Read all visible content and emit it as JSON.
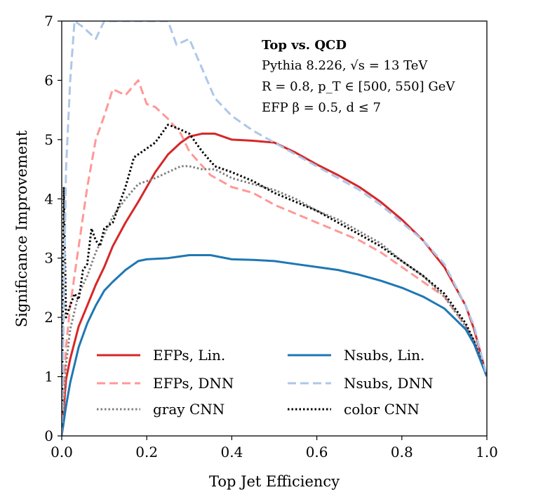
{
  "chart_data": {
    "type": "line",
    "xlabel": "Top Jet Efficiency",
    "ylabel": "Significance Improvement",
    "xlim": [
      0.0,
      1.0
    ],
    "ylim": [
      0,
      7
    ],
    "xticks": [
      "0.0",
      "0.2",
      "0.4",
      "0.6",
      "0.8",
      "1.0"
    ],
    "yticks": [
      "0",
      "1",
      "2",
      "3",
      "4",
      "5",
      "6",
      "7"
    ],
    "annotations": {
      "title": "Top vs. QCD",
      "line1": "Pythia 8.226, √s = 13 TeV",
      "line2": "R = 0.8, p_T ∈ [500, 550] GeV",
      "line3": "EFP β = 0.5, d ≤ 7"
    },
    "legend_position": "lower-left",
    "series": [
      {
        "name": "EFPs, Lin.",
        "color": "#d62728",
        "style": "solid",
        "x": [
          0.0,
          0.01,
          0.02,
          0.04,
          0.06,
          0.08,
          0.1,
          0.12,
          0.15,
          0.18,
          0.2,
          0.22,
          0.25,
          0.28,
          0.3,
          0.33,
          0.36,
          0.4,
          0.45,
          0.5,
          0.55,
          0.6,
          0.65,
          0.7,
          0.75,
          0.8,
          0.85,
          0.9,
          0.95,
          0.97,
          1.0
        ],
        "y": [
          0.0,
          0.95,
          1.3,
          1.85,
          2.2,
          2.55,
          2.85,
          3.2,
          3.6,
          3.95,
          4.2,
          4.45,
          4.75,
          4.95,
          5.05,
          5.1,
          5.1,
          5.0,
          4.98,
          4.95,
          4.78,
          4.58,
          4.4,
          4.2,
          3.95,
          3.65,
          3.3,
          2.85,
          2.2,
          1.8,
          1.0
        ]
      },
      {
        "name": "EFPs, DNN",
        "color": "#ff9896",
        "style": "dashed",
        "x": [
          0.0,
          0.01,
          0.02,
          0.04,
          0.06,
          0.08,
          0.1,
          0.12,
          0.15,
          0.18,
          0.2,
          0.22,
          0.25,
          0.28,
          0.3,
          0.35,
          0.4,
          0.45,
          0.5,
          0.55,
          0.6,
          0.65,
          0.7,
          0.75,
          0.8,
          0.85,
          0.9,
          0.95,
          0.97,
          1.0
        ],
        "y": [
          0.0,
          1.5,
          2.2,
          3.2,
          4.2,
          5.0,
          5.4,
          5.85,
          5.75,
          6.0,
          5.6,
          5.55,
          5.35,
          5.1,
          4.8,
          4.4,
          4.2,
          4.1,
          3.9,
          3.75,
          3.6,
          3.45,
          3.3,
          3.1,
          2.85,
          2.6,
          2.35,
          1.85,
          1.55,
          1.0
        ]
      },
      {
        "name": "gray CNN",
        "color": "#7f7f7f",
        "style": "dotted",
        "x": [
          0.0,
          0.01,
          0.02,
          0.04,
          0.06,
          0.08,
          0.1,
          0.12,
          0.15,
          0.18,
          0.2,
          0.22,
          0.25,
          0.28,
          0.3,
          0.33,
          0.36,
          0.4,
          0.45,
          0.5,
          0.55,
          0.6,
          0.65,
          0.7,
          0.75,
          0.8,
          0.85,
          0.9,
          0.95,
          0.97,
          1.0
        ],
        "y": [
          0.0,
          1.2,
          1.8,
          2.4,
          2.7,
          3.1,
          3.4,
          3.7,
          4.0,
          4.25,
          4.3,
          4.35,
          4.45,
          4.55,
          4.55,
          4.5,
          4.5,
          4.35,
          4.25,
          4.15,
          4.0,
          3.8,
          3.65,
          3.45,
          3.25,
          2.95,
          2.7,
          2.35,
          1.85,
          1.6,
          1.0
        ]
      },
      {
        "name": "color CNN",
        "color": "#000000",
        "style": "dotted",
        "x": [
          0.0,
          0.005,
          0.01,
          0.02,
          0.03,
          0.04,
          0.05,
          0.06,
          0.07,
          0.08,
          0.09,
          0.1,
          0.12,
          0.15,
          0.17,
          0.2,
          0.22,
          0.25,
          0.27,
          0.3,
          0.33,
          0.36,
          0.4,
          0.45,
          0.5,
          0.55,
          0.6,
          0.65,
          0.7,
          0.75,
          0.8,
          0.85,
          0.9,
          0.95,
          0.97,
          1.0
        ],
        "y": [
          0.0,
          4.2,
          2.0,
          2.2,
          2.4,
          2.3,
          2.8,
          2.9,
          3.5,
          3.3,
          3.2,
          3.5,
          3.6,
          4.2,
          4.7,
          4.85,
          4.95,
          5.25,
          5.2,
          5.1,
          4.8,
          4.55,
          4.45,
          4.3,
          4.1,
          3.95,
          3.8,
          3.6,
          3.4,
          3.2,
          2.95,
          2.7,
          2.4,
          1.9,
          1.6,
          1.0
        ]
      },
      {
        "name": "Nsubs, Lin.",
        "color": "#1f77b4",
        "style": "solid",
        "x": [
          0.0,
          0.01,
          0.02,
          0.04,
          0.06,
          0.08,
          0.1,
          0.12,
          0.15,
          0.18,
          0.2,
          0.25,
          0.3,
          0.35,
          0.4,
          0.45,
          0.5,
          0.55,
          0.6,
          0.65,
          0.7,
          0.75,
          0.8,
          0.85,
          0.9,
          0.95,
          0.97,
          1.0
        ],
        "y": [
          0.0,
          0.5,
          0.9,
          1.5,
          1.9,
          2.2,
          2.45,
          2.6,
          2.8,
          2.95,
          2.98,
          3.0,
          3.05,
          3.05,
          2.98,
          2.97,
          2.95,
          2.9,
          2.85,
          2.8,
          2.72,
          2.62,
          2.5,
          2.35,
          2.15,
          1.8,
          1.55,
          1.0
        ]
      },
      {
        "name": "Nsubs, DNN",
        "color": "#aec7e8",
        "style": "dashed",
        "x": [
          0.0,
          0.01,
          0.02,
          0.03,
          0.05,
          0.08,
          0.1,
          0.11,
          0.25,
          0.27,
          0.3,
          0.33,
          0.36,
          0.4,
          0.45,
          0.5,
          0.55,
          0.6,
          0.65,
          0.7,
          0.75,
          0.8,
          0.85,
          0.9,
          0.95,
          0.97,
          1.0
        ],
        "y": [
          0.0,
          4.5,
          6.0,
          7.0,
          6.9,
          6.7,
          7.0,
          7.0,
          7.0,
          6.6,
          6.7,
          6.2,
          5.7,
          5.4,
          5.15,
          4.95,
          4.75,
          4.55,
          4.35,
          4.15,
          3.9,
          3.6,
          3.3,
          2.9,
          2.2,
          1.85,
          1.0
        ]
      }
    ],
    "legend": [
      {
        "label": "EFPs, Lin.",
        "series": 0
      },
      {
        "label": "Nsubs, Lin.",
        "series": 4
      },
      {
        "label": "EFPs, DNN",
        "series": 1
      },
      {
        "label": "Nsubs, DNN",
        "series": 5
      },
      {
        "label": "gray CNN",
        "series": 2
      },
      {
        "label": "color CNN",
        "series": 3
      }
    ]
  }
}
